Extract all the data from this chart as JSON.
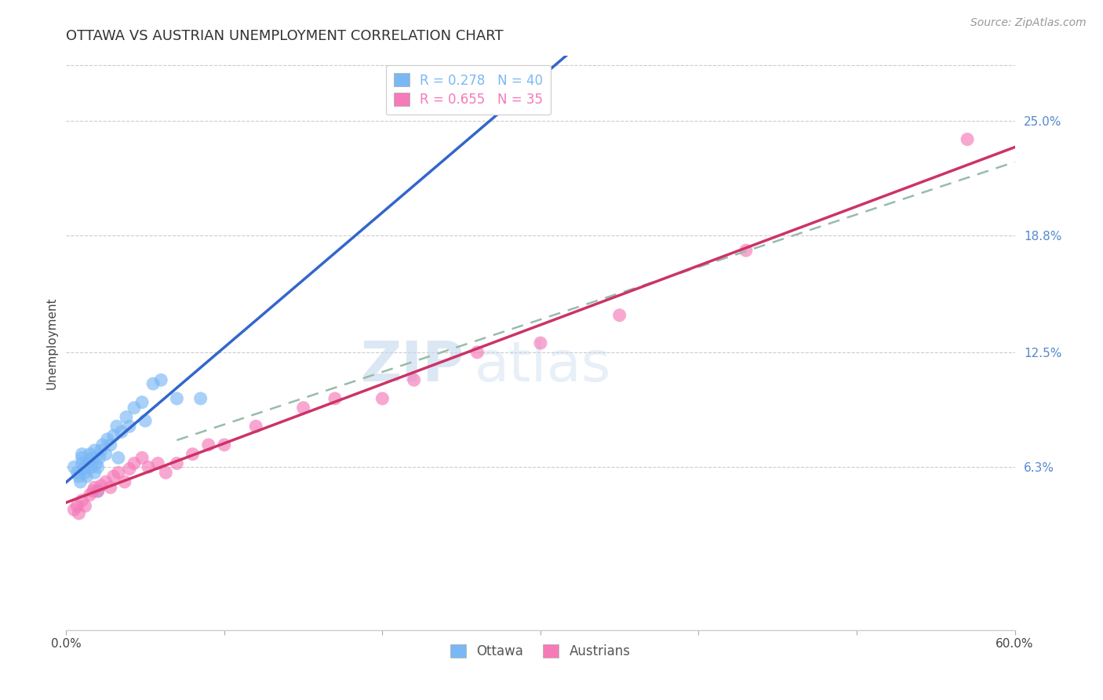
{
  "title": "OTTAWA VS AUSTRIAN UNEMPLOYMENT CORRELATION CHART",
  "source": "Source: ZipAtlas.com",
  "ylabel": "Unemployment",
  "watermark_zip": "ZIP",
  "watermark_atlas": "atlas",
  "xlim": [
    0.0,
    0.6
  ],
  "ylim": [
    -0.025,
    0.285
  ],
  "yticks_right": [
    0.063,
    0.125,
    0.188,
    0.25
  ],
  "yticklabels_right": [
    "6.3%",
    "12.5%",
    "18.8%",
    "25.0%"
  ],
  "legend_entries": [
    {
      "label": "R = 0.278   N = 40",
      "color": "#7ab8f5"
    },
    {
      "label": "R = 0.655   N = 35",
      "color": "#f57ab8"
    }
  ],
  "ottawa_color": "#7ab8f5",
  "austrians_color": "#f57ab8",
  "trendline_ottawa_color": "#3366cc",
  "trendline_austrians_color": "#cc3366",
  "trendline_dashed_color": "#99bbaa",
  "ottawa_x": [
    0.005,
    0.007,
    0.008,
    0.009,
    0.01,
    0.01,
    0.01,
    0.011,
    0.012,
    0.012,
    0.013,
    0.014,
    0.015,
    0.015,
    0.016,
    0.017,
    0.018,
    0.018,
    0.019,
    0.02,
    0.02,
    0.021,
    0.022,
    0.023,
    0.025,
    0.026,
    0.028,
    0.03,
    0.032,
    0.033,
    0.035,
    0.038,
    0.04,
    0.043,
    0.048,
    0.05,
    0.055,
    0.06,
    0.07,
    0.085
  ],
  "ottawa_y": [
    0.063,
    0.06,
    0.058,
    0.055,
    0.065,
    0.068,
    0.07,
    0.062,
    0.06,
    0.063,
    0.058,
    0.065,
    0.067,
    0.07,
    0.063,
    0.068,
    0.06,
    0.072,
    0.065,
    0.05,
    0.063,
    0.068,
    0.072,
    0.075,
    0.07,
    0.078,
    0.075,
    0.08,
    0.085,
    0.068,
    0.082,
    0.09,
    0.085,
    0.095,
    0.098,
    0.088,
    0.108,
    0.11,
    0.1,
    0.1
  ],
  "austrians_x": [
    0.005,
    0.007,
    0.008,
    0.01,
    0.012,
    0.015,
    0.017,
    0.018,
    0.02,
    0.022,
    0.025,
    0.028,
    0.03,
    0.033,
    0.037,
    0.04,
    0.043,
    0.048,
    0.052,
    0.058,
    0.063,
    0.07,
    0.08,
    0.09,
    0.1,
    0.12,
    0.15,
    0.17,
    0.2,
    0.22,
    0.26,
    0.3,
    0.35,
    0.43,
    0.57
  ],
  "austrians_y": [
    0.04,
    0.042,
    0.038,
    0.045,
    0.042,
    0.048,
    0.05,
    0.052,
    0.05,
    0.053,
    0.055,
    0.052,
    0.058,
    0.06,
    0.055,
    0.062,
    0.065,
    0.068,
    0.063,
    0.065,
    0.06,
    0.065,
    0.07,
    0.075,
    0.075,
    0.085,
    0.095,
    0.1,
    0.1,
    0.11,
    0.125,
    0.13,
    0.145,
    0.18,
    0.24
  ],
  "title_fontsize": 13,
  "source_fontsize": 10,
  "axis_label_fontsize": 11,
  "tick_fontsize": 11,
  "legend_fontsize": 12,
  "background_color": "#ffffff",
  "grid_color": "#cccccc"
}
